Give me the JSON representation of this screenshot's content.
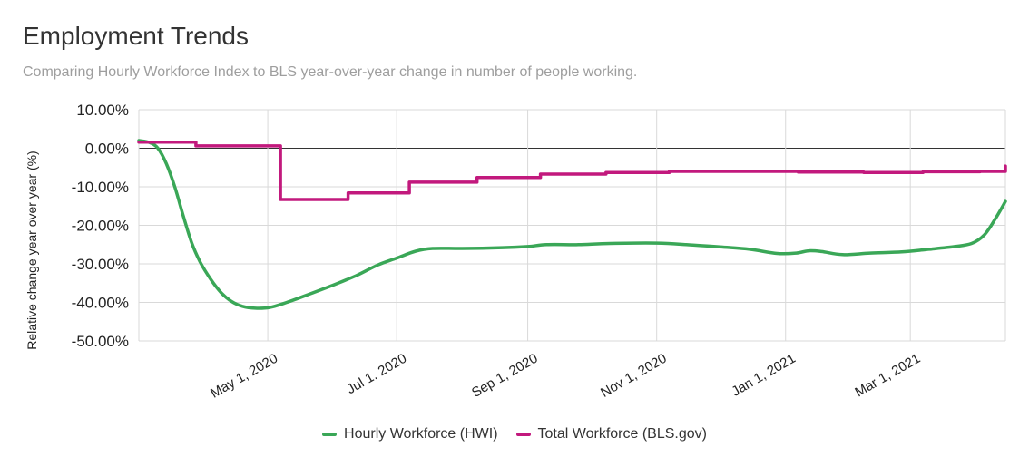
{
  "header": {
    "title": "Employment Trends",
    "subtitle": "Comparing Hourly Workforce Index to BLS year-over-year change in number of people working."
  },
  "chart_data": {
    "type": "line",
    "title": "Employment Trends",
    "subtitle": "Comparing Hourly Workforce Index to BLS year-over-year change in number of people working.",
    "xlabel": "",
    "ylabel": "Relative change year over year (%)",
    "x_range": [
      "2020-03-01",
      "2021-04-15"
    ],
    "ylim": [
      -50,
      10
    ],
    "yticks": [
      10,
      0,
      -10,
      -20,
      -30,
      -40,
      -50
    ],
    "ytick_labels": [
      "10.00%",
      "0.00%",
      "-10.00%",
      "-20.00%",
      "-30.00%",
      "-40.00%",
      "-50.00%"
    ],
    "xticks": [
      "2020-05-01",
      "2020-07-01",
      "2020-09-01",
      "2020-11-01",
      "2021-01-01",
      "2021-03-01"
    ],
    "xtick_labels": [
      "May 1, 2020",
      "Jul 1, 2020",
      "Sep 1, 2020",
      "Nov 1, 2020",
      "Jan 1, 2021",
      "Mar 1, 2021"
    ],
    "grid": true,
    "legend_position": "bottom",
    "series": [
      {
        "name": "Hourly Workforce (HWI)",
        "color": "#3aa757",
        "step": false,
        "points": [
          [
            "2020-03-01",
            2.0
          ],
          [
            "2020-03-06",
            1.5
          ],
          [
            "2020-03-10",
            0.0
          ],
          [
            "2020-03-14",
            -4.0
          ],
          [
            "2020-03-18",
            -10.0
          ],
          [
            "2020-03-22",
            -17.5
          ],
          [
            "2020-03-26",
            -24.5
          ],
          [
            "2020-03-30",
            -29.5
          ],
          [
            "2020-04-04",
            -34.0
          ],
          [
            "2020-04-09",
            -37.5
          ],
          [
            "2020-04-14",
            -39.8
          ],
          [
            "2020-04-19",
            -41.0
          ],
          [
            "2020-04-25",
            -41.5
          ],
          [
            "2020-05-02",
            -41.3
          ],
          [
            "2020-05-10",
            -40.0
          ],
          [
            "2020-05-20",
            -38.0
          ],
          [
            "2020-06-01",
            -35.5
          ],
          [
            "2020-06-12",
            -33.0
          ],
          [
            "2020-06-22",
            -30.3
          ],
          [
            "2020-07-01",
            -28.5
          ],
          [
            "2020-07-10",
            -26.7
          ],
          [
            "2020-07-18",
            -26.0
          ],
          [
            "2020-08-01",
            -26.0
          ],
          [
            "2020-08-20",
            -25.8
          ],
          [
            "2020-09-01",
            -25.5
          ],
          [
            "2020-09-10",
            -25.0
          ],
          [
            "2020-09-25",
            -25.0
          ],
          [
            "2020-10-10",
            -24.7
          ],
          [
            "2020-11-01",
            -24.6
          ],
          [
            "2020-11-15",
            -25.0
          ],
          [
            "2020-12-01",
            -25.6
          ],
          [
            "2020-12-15",
            -26.2
          ],
          [
            "2020-12-28",
            -27.3
          ],
          [
            "2021-01-06",
            -27.2
          ],
          [
            "2021-01-12",
            -26.6
          ],
          [
            "2021-01-18",
            -26.8
          ],
          [
            "2021-01-28",
            -27.6
          ],
          [
            "2021-02-10",
            -27.2
          ],
          [
            "2021-02-25",
            -26.9
          ],
          [
            "2021-03-10",
            -26.2
          ],
          [
            "2021-03-22",
            -25.5
          ],
          [
            "2021-03-30",
            -24.7
          ],
          [
            "2021-04-05",
            -22.5
          ],
          [
            "2021-04-10",
            -18.5
          ],
          [
            "2021-04-15",
            -13.8
          ]
        ]
      },
      {
        "name": "Total Workforce (BLS.gov)",
        "color": "#c2197d",
        "step": true,
        "points": [
          [
            "2020-03-01",
            1.6
          ],
          [
            "2020-03-28",
            0.6
          ],
          [
            "2020-05-07",
            -13.3
          ],
          [
            "2020-06-08",
            -11.6
          ],
          [
            "2020-07-07",
            -8.8
          ],
          [
            "2020-08-08",
            -7.6
          ],
          [
            "2020-09-07",
            -6.7
          ],
          [
            "2020-10-08",
            -6.3
          ],
          [
            "2020-11-07",
            -6.0
          ],
          [
            "2020-12-07",
            -6.0
          ],
          [
            "2021-01-07",
            -6.2
          ],
          [
            "2021-02-07",
            -6.3
          ],
          [
            "2021-03-07",
            -6.1
          ],
          [
            "2021-04-03",
            -6.0
          ],
          [
            "2021-04-15",
            -4.6
          ]
        ]
      }
    ]
  }
}
